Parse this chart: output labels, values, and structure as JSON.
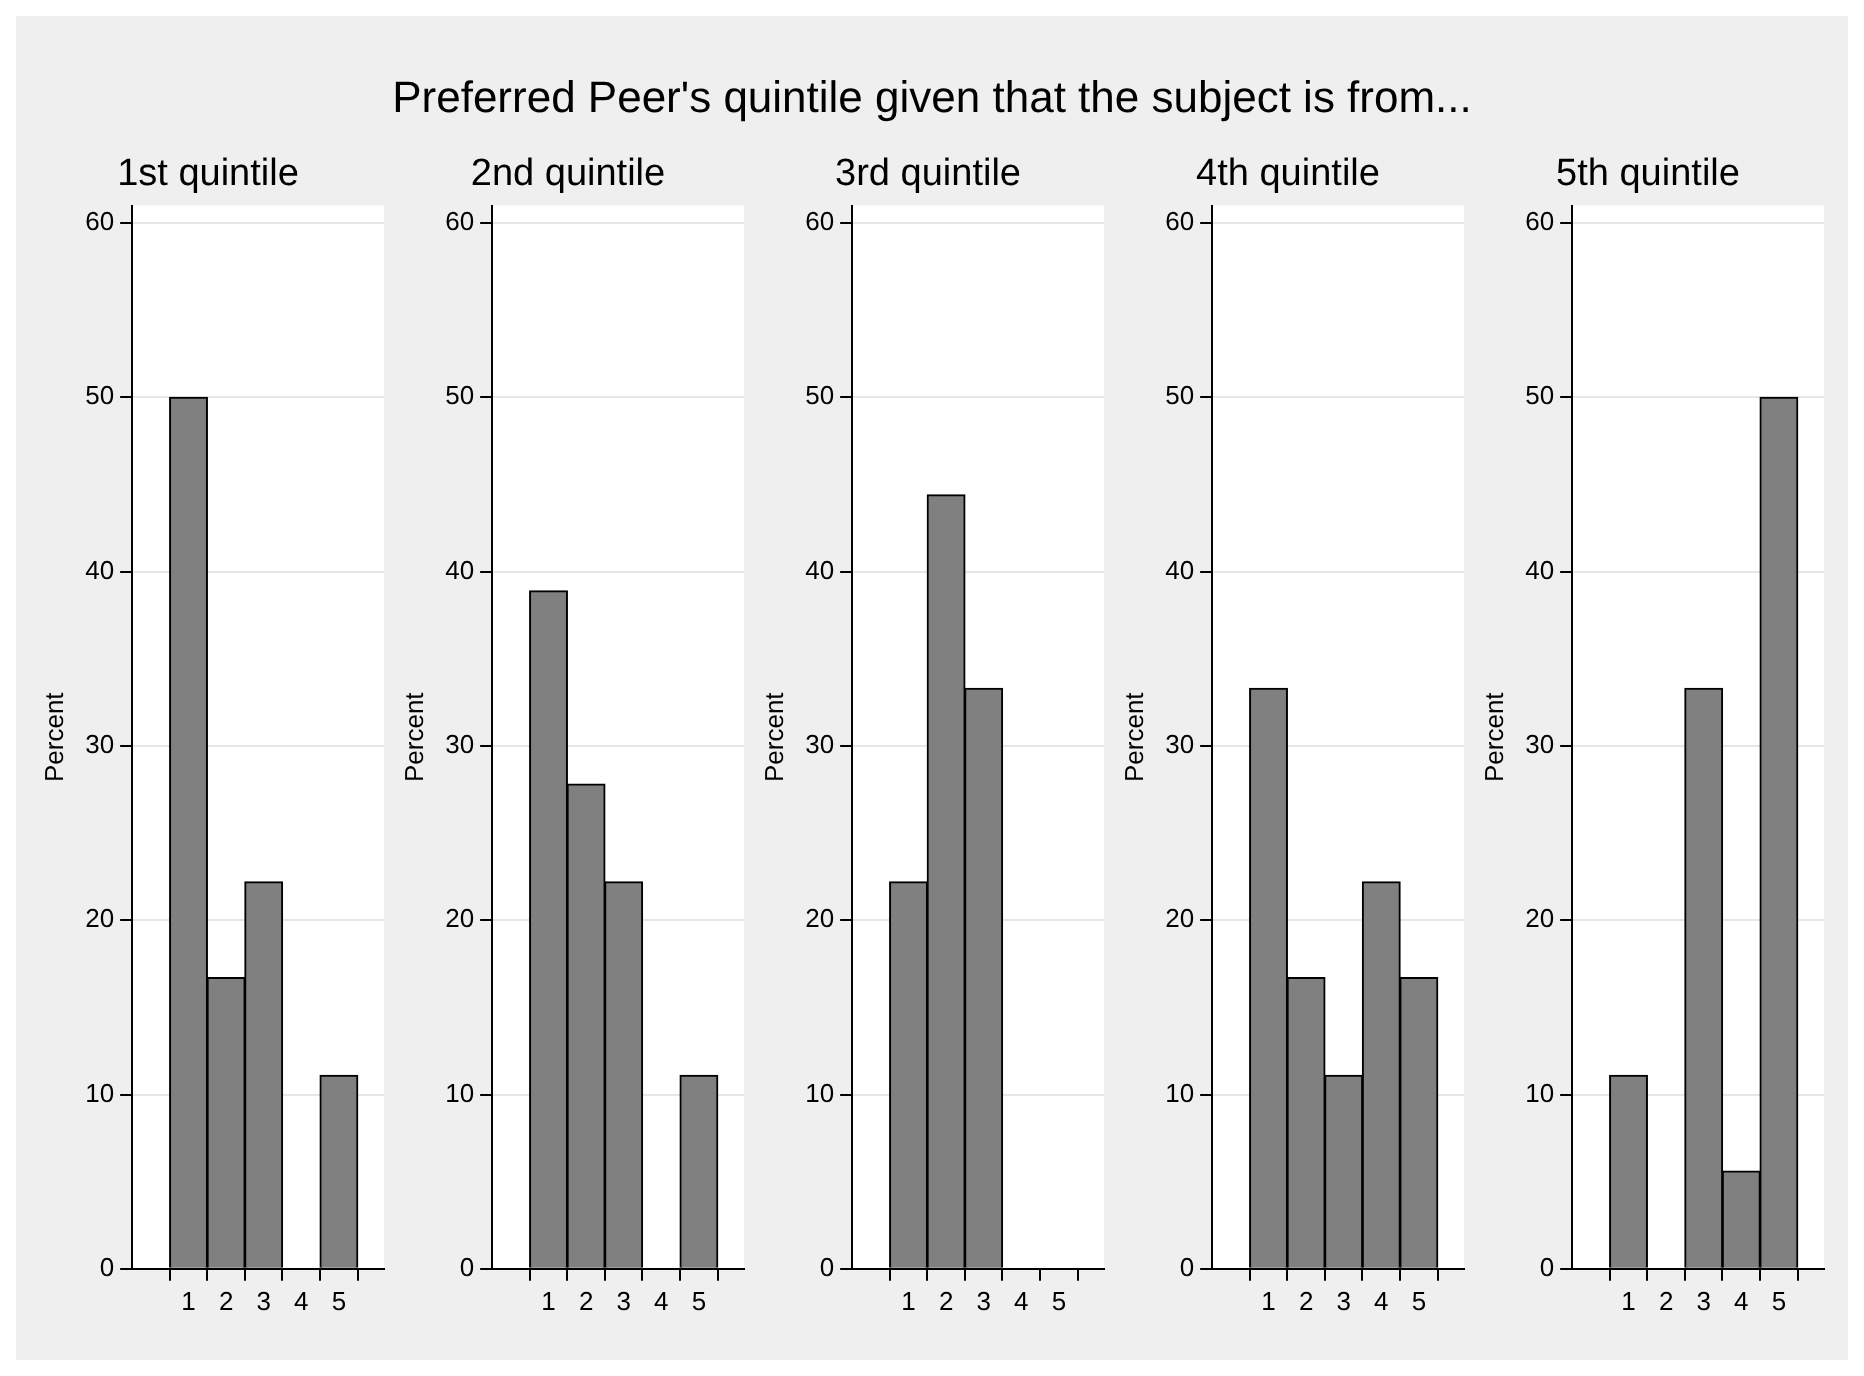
{
  "chart_data": [
    {
      "type": "histogram",
      "title": "1st quintile",
      "annotations": [
        "Preferred Peer's quintile given that the subject is from..."
      ],
      "ylabel": "Percent",
      "bins": [
        0.5,
        1.5,
        2.5,
        3.5,
        4.5,
        5.5
      ],
      "values": [
        50,
        16.7,
        22.2,
        0,
        11.1
      ],
      "color": "#808080",
      "xlim": [
        -0.5,
        6.2
      ],
      "xticks": [
        1,
        2,
        3,
        4,
        5
      ],
      "ylim": [
        0,
        61
      ],
      "yticks": [
        0,
        10,
        20,
        30,
        40,
        50,
        60
      ],
      "grid": "y"
    },
    {
      "type": "histogram",
      "title": "2nd quintile",
      "ylabel": "Percent",
      "bins": [
        0.5,
        1.5,
        2.5,
        3.5,
        4.5,
        5.5
      ],
      "values": [
        38.9,
        27.8,
        22.2,
        0,
        11.1
      ],
      "color": "#808080",
      "xlim": [
        -0.5,
        6.2
      ],
      "xticks": [
        1,
        2,
        3,
        4,
        5
      ],
      "ylim": [
        0,
        61
      ],
      "yticks": [
        0,
        10,
        20,
        30,
        40,
        50,
        60
      ],
      "grid": "y"
    },
    {
      "type": "histogram",
      "title": "3rd quintile",
      "ylabel": "Percent",
      "bins": [
        0.5,
        1.5,
        2.5,
        3.5,
        4.5,
        5.5
      ],
      "values": [
        22.2,
        44.4,
        33.3,
        0,
        0
      ],
      "color": "#808080",
      "xlim": [
        -0.5,
        6.2
      ],
      "xticks": [
        1,
        2,
        3,
        4,
        5
      ],
      "ylim": [
        0,
        61
      ],
      "yticks": [
        0,
        10,
        20,
        30,
        40,
        50,
        60
      ],
      "grid": "y"
    },
    {
      "type": "histogram",
      "title": "4th quintile",
      "ylabel": "Percent",
      "bins": [
        0.5,
        1.5,
        2.5,
        3.5,
        4.5,
        5.5
      ],
      "values": [
        33.3,
        16.7,
        11.1,
        22.2,
        16.7
      ],
      "color": "#808080",
      "xlim": [
        -0.5,
        6.2
      ],
      "xticks": [
        1,
        2,
        3,
        4,
        5
      ],
      "ylim": [
        0,
        61
      ],
      "yticks": [
        0,
        10,
        20,
        30,
        40,
        50,
        60
      ],
      "grid": "y"
    },
    {
      "type": "histogram",
      "title": "5th quintile",
      "ylabel": "Percent",
      "bins": [
        0.5,
        1.5,
        2.5,
        3.5,
        4.5,
        5.5
      ],
      "values": [
        11.1,
        0,
        33.3,
        5.6,
        50
      ],
      "color": "#808080",
      "xlim": [
        -0.5,
        6.2
      ],
      "xticks": [
        1,
        2,
        3,
        4,
        5
      ],
      "ylim": [
        0,
        61
      ],
      "yticks": [
        0,
        10,
        20,
        30,
        40,
        50,
        60
      ],
      "grid": "y"
    }
  ]
}
